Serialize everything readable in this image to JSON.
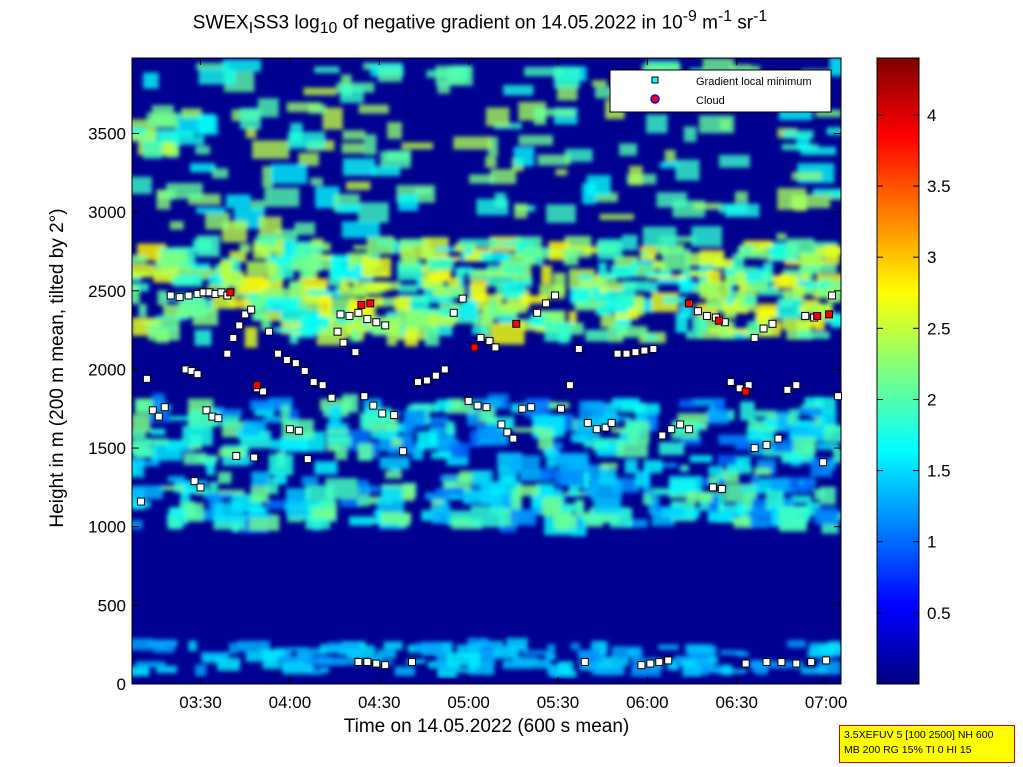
{
  "chart_data": {
    "type": "heatmap",
    "title": "SWEX_ISS3 log10 of negative gradient on 14.05.2022 in 10-9 m-1 sr-1",
    "title_parts": {
      "a": "SWEX",
      "a_sub": "I",
      "b": "SS3 log",
      "b_sub": "10",
      "c": " of negative gradient on 14.05.2022 in 10",
      "c_sup": "-9",
      "d": " m",
      "d_sup": "-1",
      "e": " sr",
      "e_sup": "-1"
    },
    "xlabel": "Time on 14.05.2022 (600 s mean)",
    "ylabel": "Height in m (200 m mean, tilted by 2°)",
    "x_ticks": [
      "03:30",
      "04:00",
      "04:30",
      "05:00",
      "05:30",
      "06:00",
      "06:30",
      "07:00"
    ],
    "x_tick_minutes": [
      210,
      240,
      270,
      300,
      330,
      360,
      390,
      420
    ],
    "xlim_minutes": [
      187,
      425
    ],
    "y_ticks": [
      "0",
      "500",
      "1000",
      "1500",
      "2000",
      "2500",
      "3000",
      "3500"
    ],
    "ylim": [
      0,
      3980
    ],
    "colorbar": {
      "ticks": [
        "0.5",
        "1",
        "1.5",
        "2",
        "2.5",
        "3",
        "3.5",
        "4"
      ],
      "range": [
        0,
        4.4
      ],
      "colormap": "jet"
    },
    "legend": {
      "location": "top-right",
      "entries": [
        {
          "label": "Gradient local minimum",
          "marker": "square",
          "color": "#00ffff",
          "edge": "#000000"
        },
        {
          "label": "Cloud",
          "marker": "circle",
          "color": "#ff0000",
          "edge": "#0000ff"
        }
      ]
    },
    "layers_approx": [
      {
        "name": "surface layer",
        "height_from": 60,
        "height_to": 260,
        "value": 1.4
      },
      {
        "name": "lower band",
        "height_from": 1000,
        "height_to": 1800,
        "value": 1.6
      },
      {
        "name": "upper band",
        "height_from": 2200,
        "height_to": 2800,
        "value": 2.2
      }
    ],
    "gradient_minima_approx": [
      {
        "x": 190,
        "y": 1160
      },
      {
        "x": 192,
        "y": 1940
      },
      {
        "x": 194,
        "y": 1740
      },
      {
        "x": 196,
        "y": 1700
      },
      {
        "x": 198,
        "y": 1760
      },
      {
        "x": 200,
        "y": 2470
      },
      {
        "x": 203,
        "y": 2460
      },
      {
        "x": 206,
        "y": 2470
      },
      {
        "x": 209,
        "y": 2480
      },
      {
        "x": 211,
        "y": 2490
      },
      {
        "x": 213,
        "y": 2490
      },
      {
        "x": 215,
        "y": 2480
      },
      {
        "x": 217,
        "y": 2490
      },
      {
        "x": 219,
        "y": 2470
      },
      {
        "x": 205,
        "y": 2000
      },
      {
        "x": 207,
        "y": 1990
      },
      {
        "x": 209,
        "y": 1970
      },
      {
        "x": 208,
        "y": 1290
      },
      {
        "x": 210,
        "y": 1250
      },
      {
        "x": 212,
        "y": 1740
      },
      {
        "x": 214,
        "y": 1700
      },
      {
        "x": 216,
        "y": 1690
      },
      {
        "x": 219,
        "y": 2100
      },
      {
        "x": 221,
        "y": 2200
      },
      {
        "x": 223,
        "y": 2280
      },
      {
        "x": 225,
        "y": 2350
      },
      {
        "x": 227,
        "y": 2380
      },
      {
        "x": 229,
        "y": 1880
      },
      {
        "x": 231,
        "y": 1860
      },
      {
        "x": 222,
        "y": 1450
      },
      {
        "x": 228,
        "y": 1440
      },
      {
        "x": 233,
        "y": 2240
      },
      {
        "x": 236,
        "y": 2100
      },
      {
        "x": 239,
        "y": 2060
      },
      {
        "x": 242,
        "y": 2040
      },
      {
        "x": 245,
        "y": 1990
      },
      {
        "x": 248,
        "y": 1920
      },
      {
        "x": 251,
        "y": 1900
      },
      {
        "x": 254,
        "y": 1820
      },
      {
        "x": 240,
        "y": 1620
      },
      {
        "x": 243,
        "y": 1610
      },
      {
        "x": 246,
        "y": 1430
      },
      {
        "x": 257,
        "y": 2350
      },
      {
        "x": 260,
        "y": 2340
      },
      {
        "x": 263,
        "y": 2360
      },
      {
        "x": 266,
        "y": 2320
      },
      {
        "x": 269,
        "y": 2300
      },
      {
        "x": 272,
        "y": 2280
      },
      {
        "x": 256,
        "y": 2240
      },
      {
        "x": 258,
        "y": 2170
      },
      {
        "x": 262,
        "y": 2110
      },
      {
        "x": 265,
        "y": 1830
      },
      {
        "x": 268,
        "y": 1770
      },
      {
        "x": 271,
        "y": 1720
      },
      {
        "x": 275,
        "y": 1710
      },
      {
        "x": 278,
        "y": 1480
      },
      {
        "x": 283,
        "y": 1920
      },
      {
        "x": 286,
        "y": 1930
      },
      {
        "x": 289,
        "y": 1960
      },
      {
        "x": 292,
        "y": 2000
      },
      {
        "x": 295,
        "y": 2360
      },
      {
        "x": 298,
        "y": 2450
      },
      {
        "x": 300,
        "y": 1800
      },
      {
        "x": 303,
        "y": 1770
      },
      {
        "x": 306,
        "y": 1760
      },
      {
        "x": 304,
        "y": 2200
      },
      {
        "x": 307,
        "y": 2180
      },
      {
        "x": 309,
        "y": 2140
      },
      {
        "x": 311,
        "y": 1650
      },
      {
        "x": 313,
        "y": 1600
      },
      {
        "x": 315,
        "y": 1560
      },
      {
        "x": 318,
        "y": 1750
      },
      {
        "x": 321,
        "y": 1760
      },
      {
        "x": 323,
        "y": 2360
      },
      {
        "x": 326,
        "y": 2420
      },
      {
        "x": 329,
        "y": 2470
      },
      {
        "x": 331,
        "y": 1750
      },
      {
        "x": 334,
        "y": 1900
      },
      {
        "x": 337,
        "y": 2130
      },
      {
        "x": 340,
        "y": 1660
      },
      {
        "x": 343,
        "y": 1620
      },
      {
        "x": 346,
        "y": 1630
      },
      {
        "x": 348,
        "y": 1660
      },
      {
        "x": 350,
        "y": 2100
      },
      {
        "x": 353,
        "y": 2100
      },
      {
        "x": 356,
        "y": 2110
      },
      {
        "x": 359,
        "y": 2120
      },
      {
        "x": 362,
        "y": 2130
      },
      {
        "x": 365,
        "y": 1580
      },
      {
        "x": 368,
        "y": 1620
      },
      {
        "x": 371,
        "y": 1650
      },
      {
        "x": 374,
        "y": 1620
      },
      {
        "x": 377,
        "y": 2370
      },
      {
        "x": 380,
        "y": 2340
      },
      {
        "x": 383,
        "y": 2330
      },
      {
        "x": 386,
        "y": 2300
      },
      {
        "x": 382,
        "y": 1250
      },
      {
        "x": 385,
        "y": 1240
      },
      {
        "x": 388,
        "y": 1920
      },
      {
        "x": 391,
        "y": 1880
      },
      {
        "x": 394,
        "y": 1900
      },
      {
        "x": 396,
        "y": 2200
      },
      {
        "x": 399,
        "y": 2260
      },
      {
        "x": 402,
        "y": 2290
      },
      {
        "x": 396,
        "y": 1500
      },
      {
        "x": 400,
        "y": 1520
      },
      {
        "x": 404,
        "y": 1560
      },
      {
        "x": 407,
        "y": 1870
      },
      {
        "x": 410,
        "y": 1900
      },
      {
        "x": 413,
        "y": 2340
      },
      {
        "x": 416,
        "y": 2330
      },
      {
        "x": 419,
        "y": 1410
      },
      {
        "x": 422,
        "y": 2470
      },
      {
        "x": 424,
        "y": 1830
      },
      {
        "x": 263,
        "y": 140
      },
      {
        "x": 266,
        "y": 140
      },
      {
        "x": 269,
        "y": 130
      },
      {
        "x": 272,
        "y": 120
      },
      {
        "x": 281,
        "y": 140
      },
      {
        "x": 339,
        "y": 140
      },
      {
        "x": 358,
        "y": 120
      },
      {
        "x": 361,
        "y": 130
      },
      {
        "x": 364,
        "y": 140
      },
      {
        "x": 367,
        "y": 150
      },
      {
        "x": 393,
        "y": 130
      },
      {
        "x": 400,
        "y": 140
      },
      {
        "x": 405,
        "y": 140
      },
      {
        "x": 410,
        "y": 130
      },
      {
        "x": 415,
        "y": 140
      },
      {
        "x": 420,
        "y": 150
      }
    ],
    "cloud_points_approx": [
      {
        "x": 220,
        "y": 2490
      },
      {
        "x": 229,
        "y": 1900
      },
      {
        "x": 264,
        "y": 2410
      },
      {
        "x": 267,
        "y": 2420
      },
      {
        "x": 302,
        "y": 2140
      },
      {
        "x": 316,
        "y": 2290
      },
      {
        "x": 374,
        "y": 2420
      },
      {
        "x": 384,
        "y": 2310
      },
      {
        "x": 393,
        "y": 1860
      },
      {
        "x": 417,
        "y": 2340
      },
      {
        "x": 421,
        "y": 2350
      }
    ]
  },
  "info_box": {
    "line1": "3.5XEFUV 5 [100 2500] NH 600",
    "line2": "MB 200 RG 15% TI 0 HI 15"
  }
}
